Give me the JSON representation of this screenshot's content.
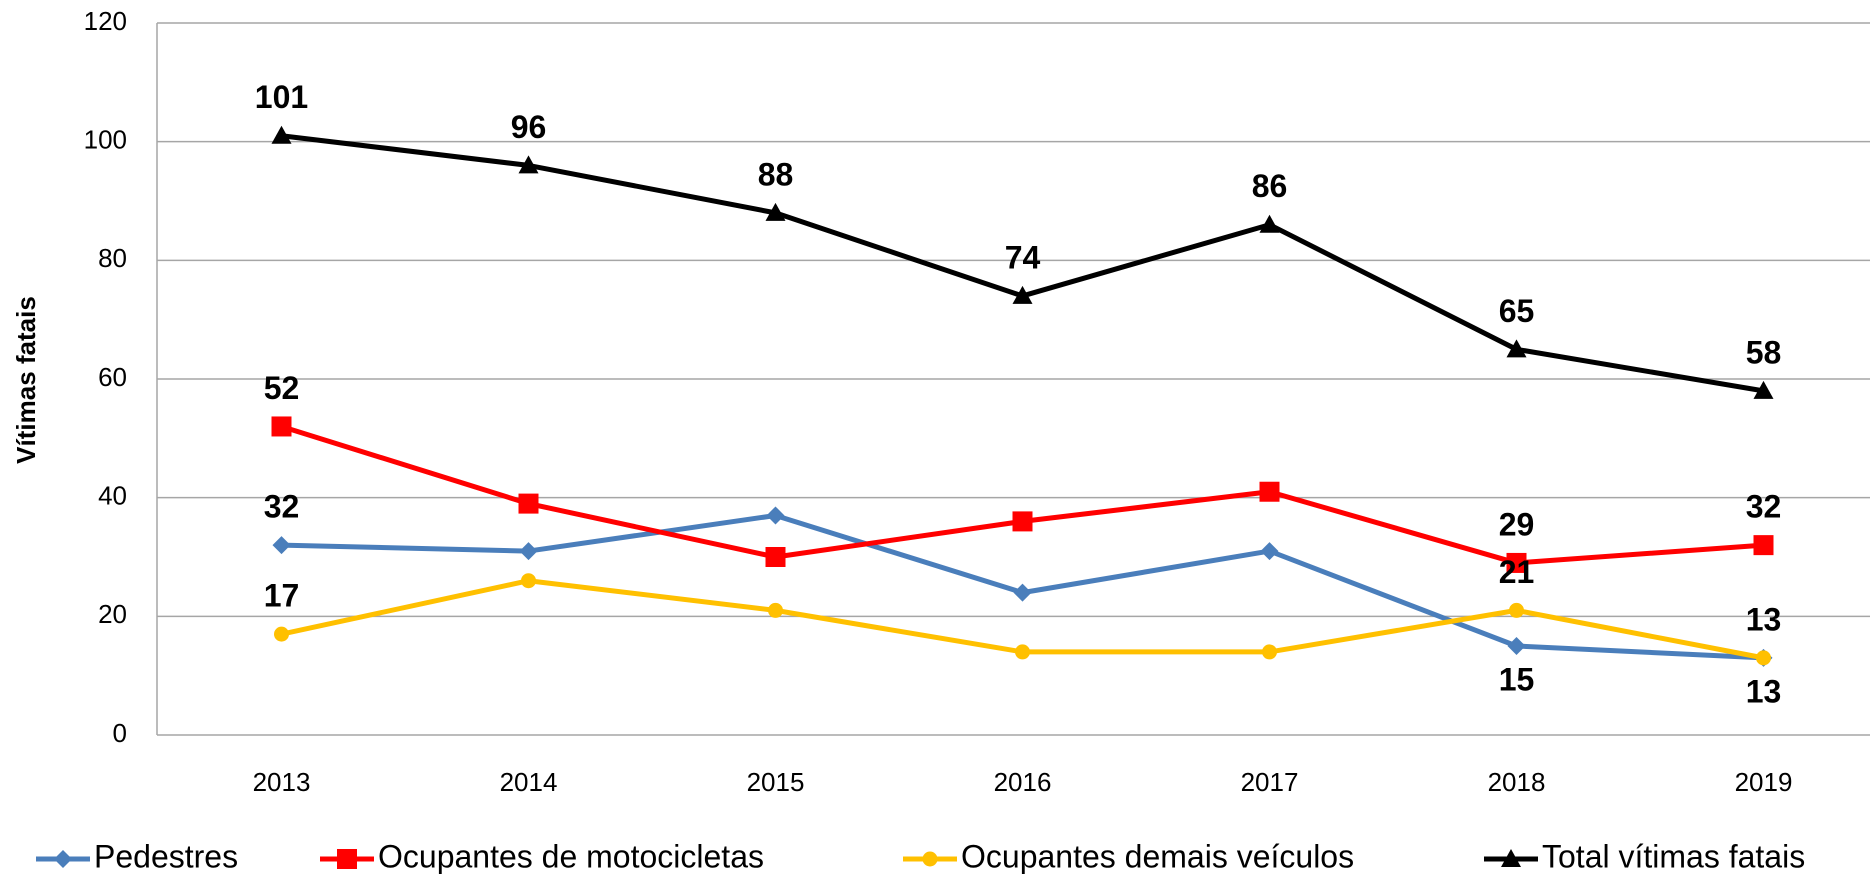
{
  "chart_data": {
    "type": "line",
    "y_label": "Vítimas fatais",
    "categories": [
      "2013",
      "2014",
      "2015",
      "2016",
      "2017",
      "2018",
      "2019"
    ],
    "series": [
      {
        "name": "Pedestres",
        "color": "#4a7ebb",
        "marker": "diamond",
        "values": [
          32,
          31,
          37,
          24,
          31,
          15,
          13
        ],
        "labeled_points": [
          0,
          5,
          6
        ],
        "label_positions": [
          "above",
          "below",
          "below"
        ]
      },
      {
        "name": "Ocupantes de motocicletas",
        "color": "#ff0000",
        "marker": "square",
        "values": [
          52,
          39,
          30,
          36,
          41,
          29,
          32
        ],
        "labeled_points": [
          0,
          5,
          6
        ],
        "label_positions": [
          "above",
          "above",
          "above"
        ]
      },
      {
        "name": "Ocupantes demais veículos",
        "color": "#ffc000",
        "marker": "circle",
        "values": [
          17,
          26,
          21,
          14,
          14,
          21,
          13
        ],
        "labeled_points": [
          0,
          5,
          6
        ],
        "label_positions": [
          "above",
          "above",
          "above"
        ]
      },
      {
        "name": "Total vítimas fatais",
        "color": "#000000",
        "marker": "triangle",
        "values": [
          101,
          96,
          88,
          74,
          86,
          65,
          58
        ],
        "labeled_points": [
          0,
          1,
          2,
          3,
          4,
          5,
          6
        ],
        "label_positions": [
          "above",
          "above",
          "above",
          "above",
          "above",
          "above",
          "above"
        ]
      }
    ],
    "ylim": [
      0,
      120
    ],
    "yticks": [
      0,
      20,
      40,
      60,
      80,
      100,
      120
    ],
    "grid": true,
    "legend": "bottom"
  }
}
